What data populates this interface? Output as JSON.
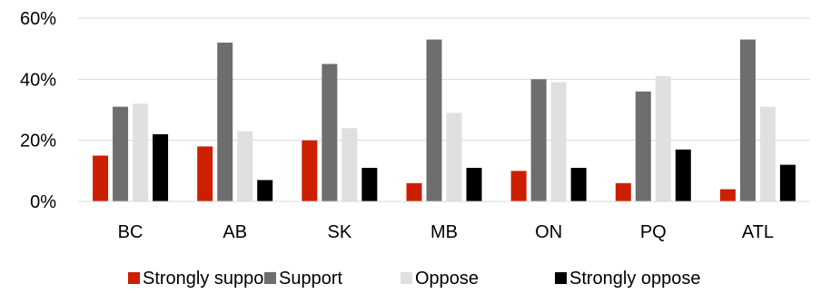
{
  "chart_data": {
    "type": "bar",
    "title": "",
    "xlabel": "",
    "ylabel": "",
    "categories": [
      "BC",
      "AB",
      "SK",
      "MB",
      "ON",
      "PQ",
      "ATL"
    ],
    "series": [
      {
        "name": "Strongly support",
        "color": "#cc1f00",
        "values": [
          15,
          18,
          20,
          6,
          10,
          6,
          4
        ]
      },
      {
        "name": "Support",
        "color": "#6e6e6e",
        "values": [
          31,
          52,
          45,
          53,
          40,
          36,
          53
        ]
      },
      {
        "name": "Oppose",
        "color": "#e0e0e0",
        "values": [
          32,
          23,
          24,
          29,
          39,
          41,
          31
        ]
      },
      {
        "name": "Strongly oppose",
        "color": "#000000",
        "values": [
          22,
          7,
          11,
          11,
          11,
          17,
          12
        ]
      }
    ],
    "ylim": [
      0,
      60
    ],
    "yticks": [
      {
        "value": 0,
        "label": "0%"
      },
      {
        "value": 20,
        "label": "20%"
      },
      {
        "value": 40,
        "label": "40%"
      },
      {
        "value": 60,
        "label": "60%"
      }
    ],
    "grid": true,
    "legend_position": "bottom"
  }
}
